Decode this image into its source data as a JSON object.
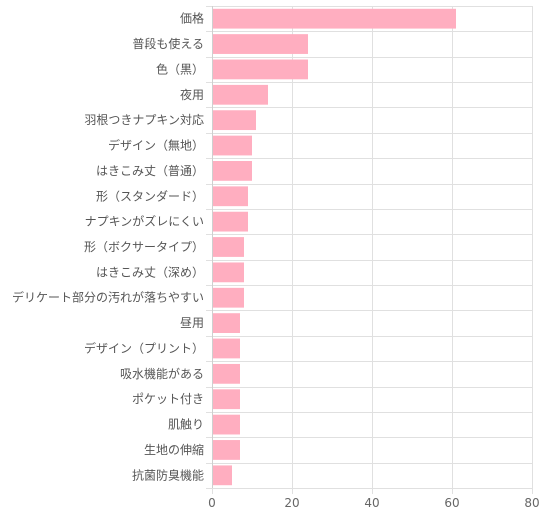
{
  "chart_data": {
    "type": "bar",
    "orientation": "horizontal",
    "categories": [
      "価格",
      "普段も使える",
      "色（黒）",
      "夜用",
      "羽根つきナプキン対応",
      "デザイン（無地）",
      "はきこみ丈（普通）",
      "形（スタンダード）",
      "ナプキンがズレにくい",
      "形（ボクサータイプ）",
      "はきこみ丈（深め）",
      "デリケート部分の汚れが落ちやすい",
      "昼用",
      "デザイン（プリント）",
      "吸水機能がある",
      "ポケット付き",
      "肌触り",
      "生地の伸縮",
      "抗菌防臭機能"
    ],
    "values": [
      61,
      24,
      24,
      14,
      11,
      10,
      10,
      9,
      9,
      8,
      8,
      8,
      7,
      7,
      7,
      7,
      7,
      7,
      5
    ],
    "xlim": [
      0,
      80
    ],
    "xticks": [
      0,
      20,
      40,
      60,
      80
    ],
    "title": "",
    "xlabel": "",
    "ylabel": "",
    "grid": true,
    "bar_color": "#ffaec0",
    "grid_color": "#e0e0e0"
  }
}
